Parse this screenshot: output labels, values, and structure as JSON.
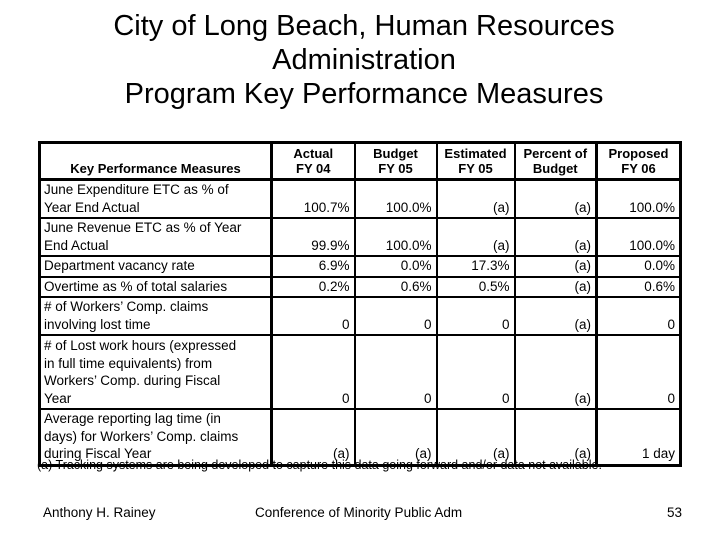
{
  "slide": {
    "title_line1": "City of Long Beach, Human Resources",
    "title_line2": "Administration",
    "title_line3": "Program Key Performance Measures"
  },
  "table": {
    "headers": [
      "Key Performance Measures",
      "Actual\nFY 04",
      "Budget\nFY 05",
      "Estimated\nFY 05",
      "Percent of\nBudget",
      "Proposed\nFY 06"
    ],
    "rows": [
      [
        "June Expenditure ETC as % of\nYear End Actual",
        "100.7%",
        "100.0%",
        "(a)",
        "(a)",
        "100.0%"
      ],
      [
        "June Revenue ETC as % of Year\nEnd Actual",
        "99.9%",
        "100.0%",
        "(a)",
        "(a)",
        "100.0%"
      ],
      [
        "Department vacancy rate",
        "6.9%",
        "0.0%",
        "17.3%",
        "(a)",
        "0.0%"
      ],
      [
        "Overtime as % of total salaries",
        "0.2%",
        "0.6%",
        "0.5%",
        "(a)",
        "0.6%"
      ],
      [
        "# of Workers’ Comp. claims\ninvolving lost time",
        "0",
        "0",
        "0",
        "(a)",
        "0"
      ],
      [
        "# of Lost work hours (expressed\nin full time equivalents) from\nWorkers’ Comp. during Fiscal\nYear",
        "0",
        "0",
        "0",
        "(a)",
        "0"
      ],
      [
        "Average reporting lag time (in\ndays) for Workers’ Comp. claims\nduring Fiscal Year",
        "(a)",
        "(a)",
        "(a)",
        "(a)",
        "1 day"
      ]
    ]
  },
  "footnote": "(a) Tracking systems are being developed to capture this data going forward and/or data not available.",
  "footer": {
    "author": "Anthony H. Rainey",
    "conference": "Conference of Minority Public Adm",
    "page_number": "53"
  }
}
